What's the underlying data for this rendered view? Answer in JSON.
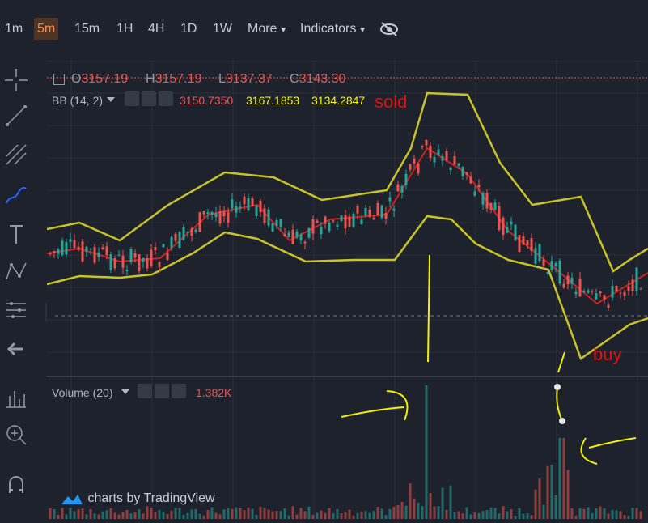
{
  "timeframes": {
    "items": [
      "1m",
      "5m",
      "15m",
      "1H",
      "4H",
      "1D",
      "1W"
    ],
    "active": "5m",
    "more": "More",
    "indicators": "Indicators"
  },
  "ohlc": {
    "o_label": "O",
    "o_value": "3157.19",
    "h_label": "H",
    "h_value": "3157.19",
    "l_label": "L",
    "l_value": "3137.37",
    "c_label": "C",
    "c_value": "3143.30"
  },
  "bb": {
    "label": "BB (14, 2)",
    "middle": "3150.7350",
    "upper": "3167.1853",
    "lower": "3134.2847"
  },
  "volume": {
    "label": "Volume (20)",
    "value": "1.382K"
  },
  "annotations": {
    "sold": "sold",
    "buy": "buy"
  },
  "watermark": "charts by TradingView",
  "colors": {
    "bg": "#1e222d",
    "up": "#26a69a",
    "down": "#ef5350",
    "bb_band": "#c8c426",
    "bb_mid": "#d01f1f",
    "accent": "#ff8a4c"
  }
}
